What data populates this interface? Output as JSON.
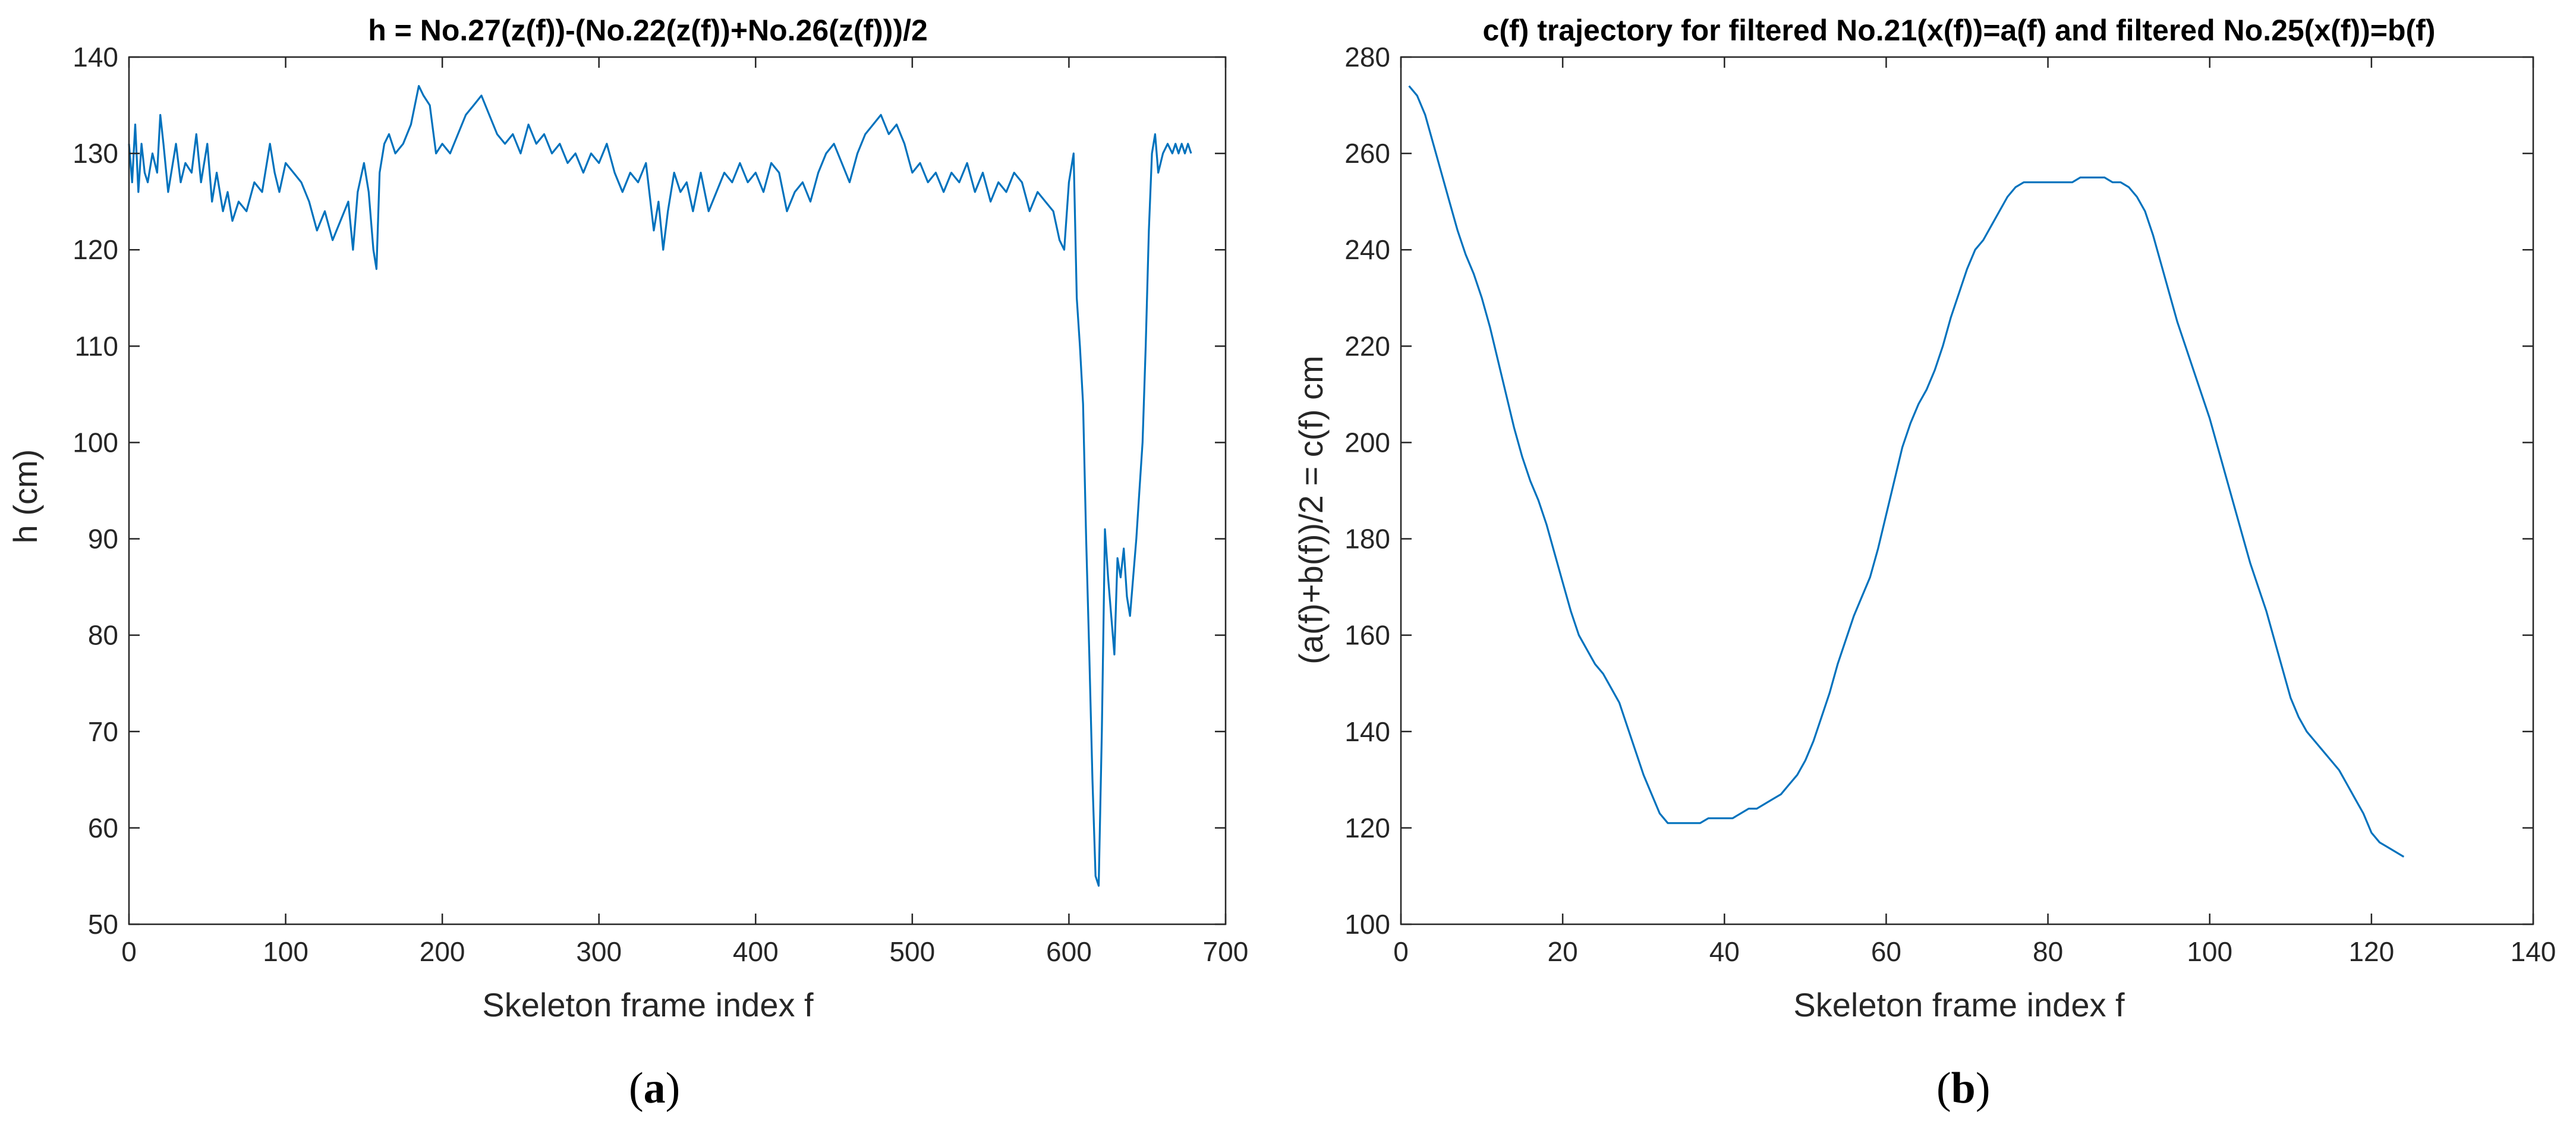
{
  "colors": {
    "line": "#0072BD",
    "axis": "#262626",
    "background": "#ffffff"
  },
  "chart_data": [
    {
      "type": "line",
      "title": "h = No.27(z(f))-(No.22(z(f))+No.26(z(f)))/2",
      "xlabel": "Skeleton frame index f",
      "ylabel": "h (cm)",
      "xlim": [
        0,
        700
      ],
      "ylim": [
        50,
        140
      ],
      "xticks": [
        0,
        100,
        200,
        300,
        400,
        500,
        600,
        700
      ],
      "yticks": [
        50,
        60,
        70,
        80,
        90,
        100,
        110,
        120,
        130,
        140
      ],
      "grid": false,
      "panel_label": {
        "open": "(",
        "letter": "a",
        "close": ")"
      },
      "series": [
        {
          "name": "h",
          "x": [
            0,
            2,
            4,
            6,
            8,
            10,
            12,
            15,
            18,
            20,
            22,
            25,
            28,
            30,
            33,
            36,
            40,
            43,
            46,
            50,
            53,
            56,
            60,
            63,
            66,
            70,
            75,
            80,
            85,
            90,
            93,
            96,
            100,
            105,
            110,
            115,
            120,
            125,
            130,
            135,
            140,
            143,
            146,
            150,
            153,
            156,
            158,
            160,
            163,
            166,
            170,
            175,
            180,
            185,
            188,
            192,
            196,
            200,
            205,
            210,
            215,
            220,
            225,
            230,
            235,
            240,
            245,
            250,
            255,
            260,
            265,
            270,
            275,
            280,
            285,
            290,
            295,
            300,
            305,
            310,
            315,
            320,
            325,
            330,
            335,
            338,
            341,
            344,
            348,
            352,
            356,
            360,
            365,
            370,
            375,
            380,
            385,
            390,
            395,
            400,
            405,
            410,
            415,
            420,
            425,
            430,
            435,
            440,
            445,
            450,
            455,
            460,
            465,
            470,
            475,
            480,
            485,
            490,
            495,
            500,
            505,
            510,
            515,
            520,
            525,
            530,
            535,
            540,
            545,
            550,
            555,
            560,
            565,
            570,
            575,
            580,
            585,
            590,
            594,
            597,
            600,
            603,
            605,
            607,
            609,
            611,
            613,
            615,
            617,
            619,
            621,
            623,
            625,
            627,
            629,
            631,
            633,
            635,
            637,
            639,
            641,
            643,
            645,
            647,
            649,
            651,
            653,
            655,
            657,
            660,
            663,
            666,
            668,
            670,
            672,
            674,
            676,
            678
          ],
          "y": [
            131,
            127,
            133,
            126,
            131,
            128,
            127,
            130,
            128,
            134,
            131,
            126,
            129,
            131,
            127,
            129,
            128,
            132,
            127,
            131,
            125,
            128,
            124,
            126,
            123,
            125,
            124,
            127,
            126,
            131,
            128,
            126,
            129,
            128,
            127,
            125,
            122,
            124,
            121,
            123,
            125,
            120,
            126,
            129,
            126,
            120,
            118,
            128,
            131,
            132,
            130,
            131,
            133,
            137,
            136,
            135,
            130,
            131,
            130,
            132,
            134,
            135,
            136,
            134,
            132,
            131,
            132,
            130,
            133,
            131,
            132,
            130,
            131,
            129,
            130,
            128,
            130,
            129,
            131,
            128,
            126,
            128,
            127,
            129,
            122,
            125,
            120,
            124,
            128,
            126,
            127,
            124,
            128,
            124,
            126,
            128,
            127,
            129,
            127,
            128,
            126,
            129,
            128,
            124,
            126,
            127,
            125,
            128,
            130,
            131,
            129,
            127,
            130,
            132,
            133,
            134,
            132,
            133,
            131,
            128,
            129,
            127,
            128,
            126,
            128,
            127,
            129,
            126,
            128,
            125,
            127,
            126,
            128,
            127,
            124,
            126,
            125,
            124,
            121,
            120,
            127,
            130,
            115,
            110,
            104,
            90,
            78,
            65,
            55,
            54,
            70,
            91,
            86,
            82,
            78,
            88,
            86,
            89,
            84,
            82,
            86,
            90,
            95,
            100,
            110,
            122,
            130,
            132,
            128,
            130,
            131,
            130,
            131,
            130,
            131,
            130,
            131,
            130
          ]
        }
      ]
    },
    {
      "type": "line",
      "title": "c(f) trajectory for filtered No.21(x(f))=a(f) and filtered No.25(x(f))=b(f)",
      "xlabel": "Skeleton frame index f",
      "ylabel": "(a(f)+b(f))/2 = c(f) cm",
      "xlim": [
        0,
        140
      ],
      "ylim": [
        100,
        280
      ],
      "xticks": [
        0,
        20,
        40,
        60,
        80,
        100,
        120,
        140
      ],
      "yticks": [
        100,
        120,
        140,
        160,
        180,
        200,
        220,
        240,
        260,
        280
      ],
      "grid": false,
      "panel_label": {
        "open": "(",
        "letter": "b",
        "close": ")"
      },
      "series": [
        {
          "name": "c",
          "x": [
            1,
            2,
            3,
            4,
            5,
            6,
            7,
            8,
            9,
            10,
            11,
            12,
            13,
            14,
            15,
            16,
            17,
            18,
            19,
            20,
            21,
            22,
            23,
            24,
            25,
            26,
            27,
            28,
            29,
            30,
            31,
            32,
            33,
            34,
            35,
            36,
            37,
            38,
            39,
            40,
            41,
            42,
            43,
            44,
            45,
            46,
            47,
            48,
            49,
            50,
            51,
            52,
            53,
            54,
            55,
            56,
            57,
            58,
            59,
            60,
            61,
            62,
            63,
            64,
            65,
            66,
            67,
            68,
            69,
            70,
            71,
            72,
            73,
            74,
            75,
            76,
            77,
            78,
            79,
            80,
            81,
            82,
            83,
            84,
            85,
            86,
            87,
            88,
            89,
            90,
            91,
            92,
            93,
            94,
            95,
            96,
            97,
            98,
            99,
            100,
            101,
            102,
            103,
            104,
            105,
            106,
            107,
            108,
            109,
            110,
            111,
            112,
            113,
            114,
            115,
            116,
            117,
            118,
            119,
            120,
            121,
            122,
            123,
            124
          ],
          "y": [
            274,
            272,
            268,
            262,
            256,
            250,
            244,
            239,
            235,
            230,
            224,
            217,
            210,
            203,
            197,
            192,
            188,
            183,
            177,
            171,
            165,
            160,
            157,
            154,
            152,
            149,
            146,
            141,
            136,
            131,
            127,
            123,
            121,
            121,
            121,
            121,
            121,
            122,
            122,
            122,
            122,
            123,
            124,
            124,
            125,
            126,
            127,
            129,
            131,
            134,
            138,
            143,
            148,
            154,
            159,
            164,
            168,
            172,
            178,
            185,
            192,
            199,
            204,
            208,
            211,
            215,
            220,
            226,
            231,
            236,
            240,
            242,
            245,
            248,
            251,
            253,
            254,
            254,
            254,
            254,
            254,
            254,
            254,
            255,
            255,
            255,
            255,
            254,
            254,
            253,
            251,
            248,
            243,
            237,
            231,
            225,
            220,
            215,
            210,
            205,
            199,
            193,
            187,
            181,
            175,
            170,
            165,
            159,
            153,
            147,
            143,
            140,
            138,
            136,
            134,
            132,
            129,
            126,
            123,
            119,
            117,
            116,
            115,
            114
          ]
        }
      ]
    }
  ]
}
